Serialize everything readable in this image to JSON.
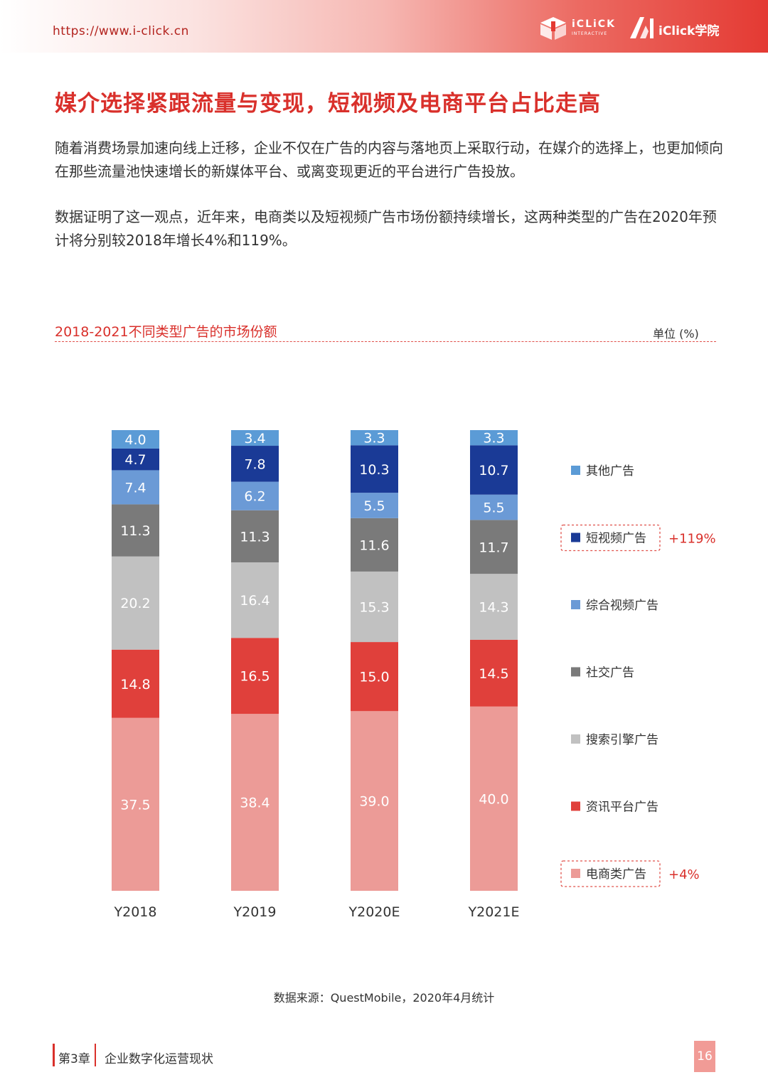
{
  "header": {
    "url": "https://www.i-click.cn",
    "logo1_text": "iCLiCK",
    "logo1_sub": "INTERACTIVE",
    "logo2_text": "iClick学院"
  },
  "title": "媒介选择紧跟流量与变现，短视频及电商平台占比走高",
  "paragraphs": [
    "随着消费场景加速向线上迁移，企业不仅在广告的内容与落地页上采取行动，在媒介的选择上，也更加倾向在那些流量池快速增长的新媒体平台、或离变现更近的平台进行广告投放。",
    "数据证明了这一观点，近年来，电商类以及短视频广告市场份额持续增长，这两种类型的广告在2020年预计将分别较2018年增长4%和119%。"
  ],
  "chart_title": "2018-2021不同类型广告的市场份额",
  "unit": "单位 (%)",
  "source": "数据来源：QuestMobile，2020年4月统计",
  "footer": {
    "chapter": "第3章",
    "section": "企业数字化运营现状",
    "page": "16"
  },
  "colors": {
    "accent": "#d9302b",
    "ecommerce": "#ec9b97",
    "news": "#e0403b",
    "search": "#c1c1c1",
    "social": "#7a7a7a",
    "video": "#6b9ad6",
    "short_video": "#1a3a96",
    "other": "#5b9bd6"
  },
  "chart_data": {
    "type": "bar",
    "stacked": true,
    "title": "2018-2021不同类型广告的市场份额",
    "ylabel": "单位 (%)",
    "categories": [
      "Y2018",
      "Y2019",
      "Y2020E",
      "Y2021E"
    ],
    "series": [
      {
        "name": "电商类广告",
        "key": "ecommerce",
        "values": [
          37.5,
          38.4,
          39.0,
          40.0
        ],
        "value_labels": [
          "37.5",
          "38.4",
          "39.0",
          "40.0"
        ],
        "annotation": "+4%"
      },
      {
        "name": "资讯平台广告",
        "key": "news",
        "values": [
          14.8,
          16.5,
          15.0,
          14.5
        ],
        "value_labels": [
          "14.8",
          "16.5",
          "15.0",
          "14.5"
        ]
      },
      {
        "name": "搜索引擎广告",
        "key": "search",
        "values": [
          20.2,
          16.4,
          15.3,
          14.3
        ],
        "value_labels": [
          "20.2",
          "16.4",
          "15.3",
          "14.3"
        ]
      },
      {
        "name": "社交广告",
        "key": "social",
        "values": [
          11.3,
          11.3,
          11.6,
          11.7
        ],
        "value_labels": [
          "11.3",
          "11.3",
          "11.6",
          "11.7"
        ]
      },
      {
        "name": "综合视频广告",
        "key": "video",
        "values": [
          7.4,
          6.2,
          5.5,
          5.5
        ],
        "value_labels": [
          "7.4",
          "6.2",
          "5.5",
          "5.5"
        ]
      },
      {
        "name": "短视频广告",
        "key": "short_video",
        "values": [
          4.7,
          7.8,
          10.3,
          10.7
        ],
        "value_labels": [
          "4.7",
          "7.8",
          "10.3",
          "10.7"
        ],
        "annotation": "+119%"
      },
      {
        "name": "其他广告",
        "key": "other",
        "values": [
          4.0,
          3.4,
          3.3,
          3.3
        ],
        "value_labels": [
          "4.0",
          "3.4",
          "3.3",
          "3.3"
        ]
      }
    ],
    "legend_order": [
      "other",
      "short_video",
      "video",
      "social",
      "search",
      "news",
      "ecommerce"
    ],
    "legend": "right",
    "grid": false
  }
}
